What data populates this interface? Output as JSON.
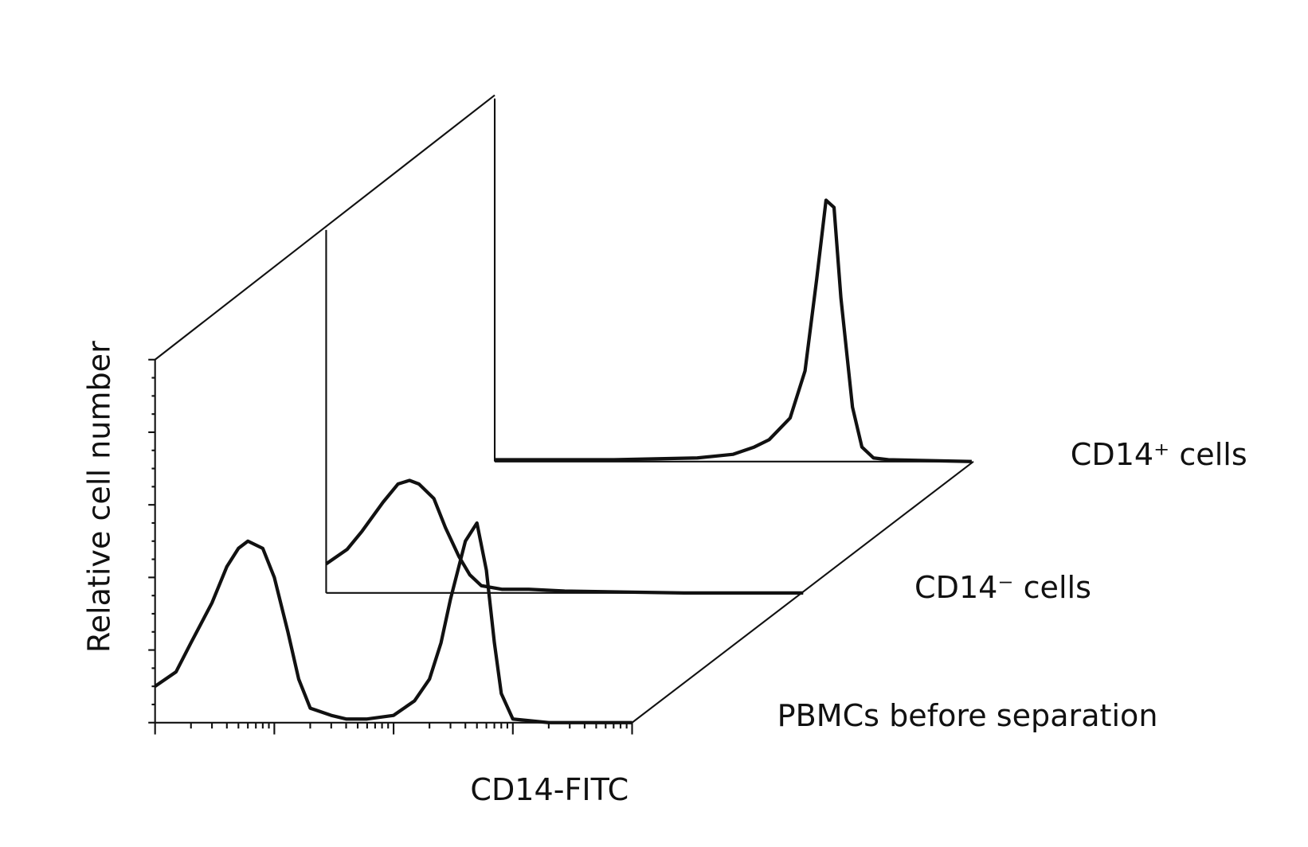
{
  "chart_data": {
    "type": "line",
    "xlabel": "CD14-FITC",
    "ylabel": "Relative cell number",
    "xscale": "log",
    "xlim": [
      1,
      10000
    ],
    "xticks": [
      1,
      10,
      100,
      1000,
      10000
    ],
    "ylim": [
      0,
      100
    ],
    "yticks": [
      0,
      20,
      40,
      60,
      80,
      100
    ],
    "series": [
      {
        "name": "PBMCs before separation",
        "color": "#111111",
        "x": [
          1,
          1.5,
          2,
          3,
          4,
          5,
          6,
          8,
          10,
          13,
          16,
          20,
          30,
          40,
          60,
          100,
          150,
          200,
          250,
          300,
          400,
          500,
          600,
          700,
          800,
          1000,
          2000,
          10000
        ],
        "values": [
          10,
          14,
          22,
          33,
          43,
          48,
          50,
          48,
          40,
          25,
          12,
          4,
          2,
          1,
          1,
          2,
          6,
          12,
          22,
          34,
          50,
          55,
          42,
          22,
          8,
          1,
          0,
          0
        ]
      },
      {
        "name": "CD14⁻ cells",
        "color": "#111111",
        "x": [
          1,
          1.5,
          2,
          3,
          4,
          5,
          6,
          8,
          10,
          13,
          16,
          20,
          30,
          50,
          100,
          1000,
          10000
        ],
        "values": [
          8,
          12,
          17,
          25,
          30,
          31,
          30,
          26,
          18,
          10,
          5,
          2,
          1,
          1,
          0.5,
          0,
          0
        ]
      },
      {
        "name": "CD14⁺ cells",
        "color": "#111111",
        "x": [
          1,
          10,
          50,
          100,
          150,
          200,
          300,
          400,
          500,
          600,
          700,
          800,
          1000,
          1200,
          1500,
          2000,
          10000
        ],
        "values": [
          0.5,
          0.5,
          1,
          2,
          4,
          6,
          12,
          25,
          50,
          72,
          70,
          45,
          15,
          4,
          1,
          0.5,
          0
        ]
      }
    ]
  }
}
